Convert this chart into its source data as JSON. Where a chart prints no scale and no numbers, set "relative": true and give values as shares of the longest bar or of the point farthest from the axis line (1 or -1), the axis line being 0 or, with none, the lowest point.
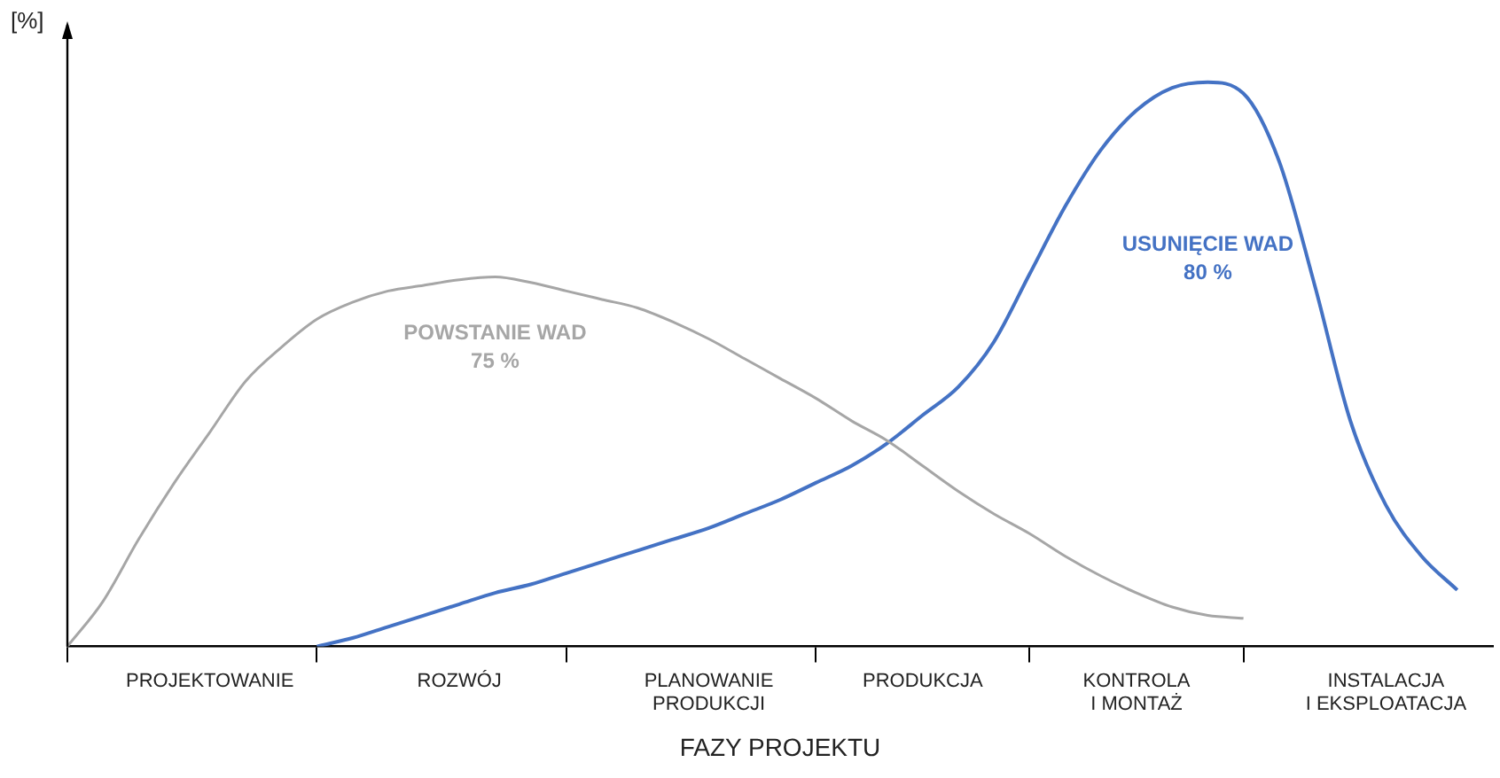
{
  "chart_data": {
    "type": "line",
    "relative": true,
    "xlabel": "FAZY PROJEKTU",
    "ylabel": "[%]",
    "categories": [
      null,
      null,
      null,
      null,
      "PROJEKTOWANIE",
      null,
      null,
      null,
      null,
      null,
      null,
      "ROZWÓJ",
      null,
      null,
      null,
      null,
      null,
      null,
      "PLANOWANIE\nPRODUKCJI",
      null,
      null,
      null,
      null,
      null,
      "PRODUKCJA",
      null,
      null,
      null,
      null,
      null,
      "KONTROLA\nI MONTAŻ",
      null,
      null,
      null,
      null,
      null,
      null,
      "INSTALACJA\nI EKSPLOATACJA",
      null,
      null,
      null
    ],
    "grid": false,
    "legend": false,
    "marker": "none",
    "line_style": "solid",
    "series": [
      {
        "color": "#a6a6a6",
        "values": [
          0,
          0.08,
          0.19,
          0.29,
          0.38,
          0.47,
          0.53,
          0.58,
          0.61,
          0.63,
          0.64,
          0.65,
          0.655,
          0.645,
          0.63,
          0.615,
          0.6,
          0.575,
          0.545,
          0.51,
          0.475,
          0.44,
          0.4,
          0.365,
          0.32,
          0.275,
          0.235,
          0.2,
          0.16,
          0.125,
          0.095,
          0.07,
          0.055,
          0.05,
          null,
          null,
          null,
          null,
          null,
          null,
          null
        ]
      },
      {
        "color": "#4472c4",
        "values": [
          null,
          null,
          null,
          null,
          null,
          null,
          null,
          0,
          0.015,
          0.035,
          0.055,
          0.075,
          0.095,
          0.11,
          0.13,
          0.15,
          0.17,
          0.19,
          0.21,
          0.235,
          0.26,
          0.29,
          0.32,
          0.36,
          0.41,
          0.46,
          0.54,
          0.66,
          0.78,
          0.88,
          0.95,
          0.99,
          1.0,
          0.98,
          0.86,
          0.64,
          0.4,
          0.25,
          0.16,
          0.1,
          null
        ]
      }
    ],
    "annotations": [
      "POWSTANIE WAD\n75 %",
      "USUNIĘCIE WAD\n80 %"
    ]
  }
}
